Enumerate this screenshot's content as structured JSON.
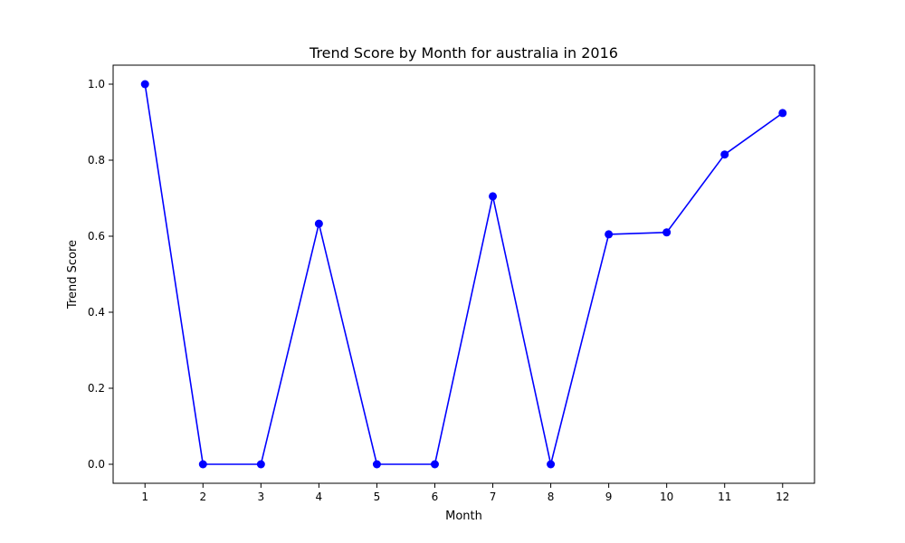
{
  "chart_data": {
    "type": "line",
    "title": "Trend Score by Month for australia in 2016",
    "xlabel": "Month",
    "ylabel": "Trend Score",
    "x": [
      1,
      2,
      3,
      4,
      5,
      6,
      7,
      8,
      9,
      10,
      11,
      12
    ],
    "x_tick_labels": [
      "1",
      "2",
      "3",
      "4",
      "5",
      "6",
      "7",
      "8",
      "9",
      "10",
      "11",
      "12"
    ],
    "y_ticks": [
      0.0,
      0.2,
      0.4,
      0.6,
      0.8,
      1.0
    ],
    "y_tick_labels": [
      "0.0",
      "0.2",
      "0.4",
      "0.6",
      "0.8",
      "1.0"
    ],
    "xlim": [
      0.45,
      12.55
    ],
    "ylim": [
      -0.05,
      1.05
    ],
    "grid": false,
    "series": [
      {
        "color": "#0000ff",
        "marker": "circle",
        "values": [
          1.0,
          0.0,
          0.0,
          0.633,
          0.0,
          0.0,
          0.705,
          0.0,
          0.605,
          0.61,
          0.815,
          0.924
        ]
      }
    ]
  }
}
